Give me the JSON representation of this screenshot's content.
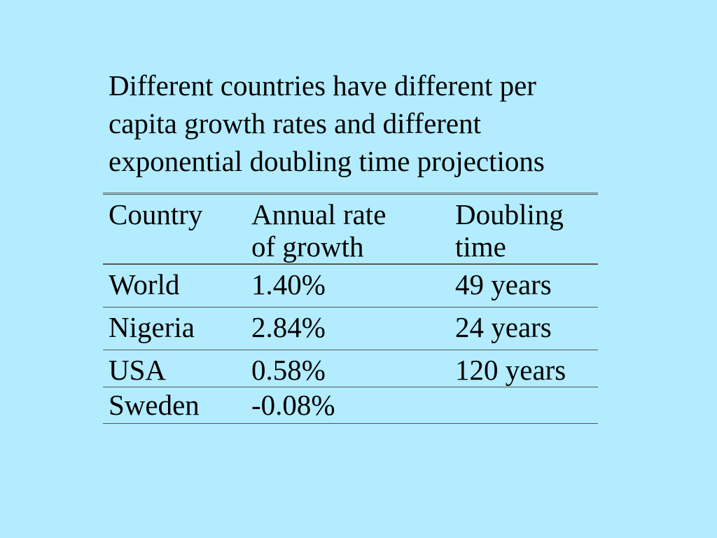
{
  "slide": {
    "title": "Different countries have different per\ncapita growth rates and different\nexponential doubling time projections"
  },
  "table": {
    "headers": [
      "Country",
      "Annual rate\nof growth",
      "Doubling\ntime"
    ],
    "rows": [
      [
        "World",
        "1.40%",
        "49 years"
      ],
      [
        "Nigeria",
        "2.84%",
        "24 years"
      ],
      [
        "USA",
        "0.58%",
        "120 years"
      ],
      [
        "Sweden",
        "-0.08%",
        ""
      ]
    ]
  },
  "colors": {
    "background": "#b3ecfe",
    "text": "#000000",
    "rule": "#555555"
  }
}
